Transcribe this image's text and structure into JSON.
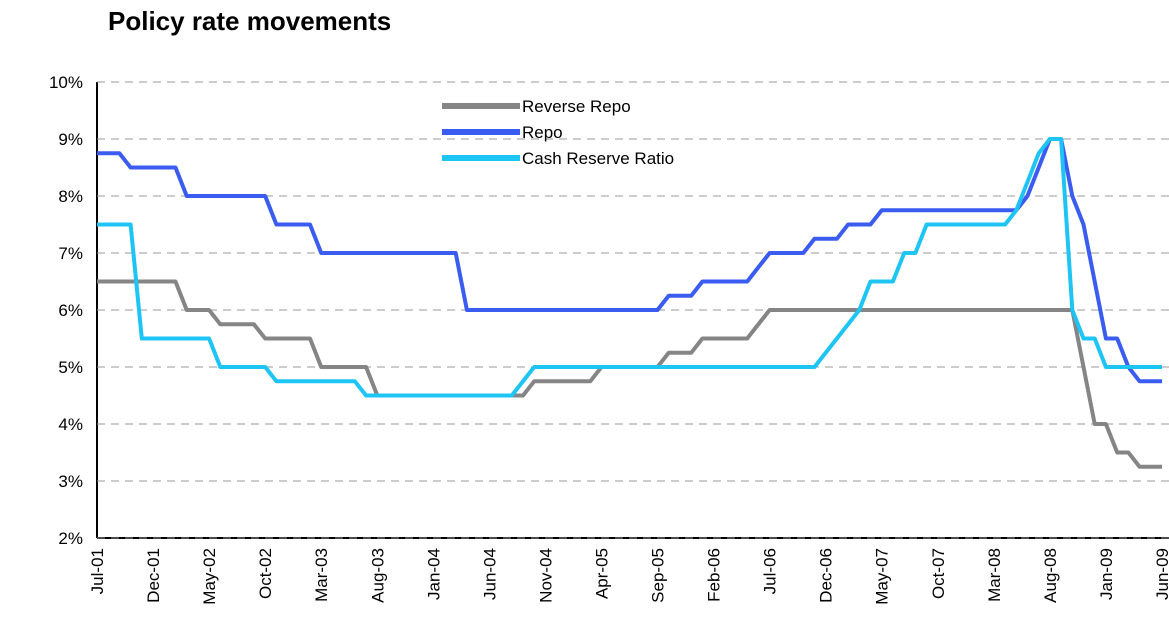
{
  "chart_data": {
    "type": "line",
    "title": "Policy rate movements",
    "categories": [
      "Jul-01",
      null,
      null,
      null,
      null,
      "Dec-01",
      null,
      null,
      null,
      null,
      "May-02",
      null,
      null,
      null,
      null,
      "Oct-02",
      null,
      null,
      null,
      null,
      "Mar-03",
      null,
      null,
      null,
      null,
      "Aug-03",
      null,
      null,
      null,
      null,
      "Jan-04",
      null,
      null,
      null,
      null,
      "Jun-04",
      null,
      null,
      null,
      null,
      "Nov-04",
      null,
      null,
      null,
      null,
      "Apr-05",
      null,
      null,
      null,
      null,
      "Sep-05",
      null,
      null,
      null,
      null,
      "Feb-06",
      null,
      null,
      null,
      null,
      "Jul-06",
      null,
      null,
      null,
      null,
      "Dec-06",
      null,
      null,
      null,
      null,
      "May-07",
      null,
      null,
      null,
      null,
      "Oct-07",
      null,
      null,
      null,
      null,
      "Mar-08",
      null,
      null,
      null,
      null,
      "Aug-08",
      null,
      null,
      null,
      null,
      "Jan-09",
      null,
      null,
      null,
      null,
      "Jun-09"
    ],
    "series": [
      {
        "name": "Reverse Repo",
        "color": "#858585",
        "values": [
          6.5,
          6.5,
          6.5,
          6.5,
          6.5,
          6.5,
          6.5,
          6.5,
          6.0,
          6.0,
          6.0,
          5.75,
          5.75,
          5.75,
          5.75,
          5.5,
          5.5,
          5.5,
          5.5,
          5.5,
          5.0,
          5.0,
          5.0,
          5.0,
          5.0,
          4.5,
          4.5,
          4.5,
          4.5,
          4.5,
          4.5,
          4.5,
          4.5,
          4.5,
          4.5,
          4.5,
          4.5,
          4.5,
          4.5,
          4.75,
          4.75,
          4.75,
          4.75,
          4.75,
          4.75,
          5.0,
          5.0,
          5.0,
          5.0,
          5.0,
          5.0,
          5.25,
          5.25,
          5.25,
          5.5,
          5.5,
          5.5,
          5.5,
          5.5,
          5.75,
          6.0,
          6.0,
          6.0,
          6.0,
          6.0,
          6.0,
          6.0,
          6.0,
          6.0,
          6.0,
          6.0,
          6.0,
          6.0,
          6.0,
          6.0,
          6.0,
          6.0,
          6.0,
          6.0,
          6.0,
          6.0,
          6.0,
          6.0,
          6.0,
          6.0,
          6.0,
          6.0,
          6.0,
          5.0,
          4.0,
          4.0,
          3.5,
          3.5,
          3.25,
          3.25,
          3.25
        ]
      },
      {
        "name": "Repo",
        "color": "#3b5cf0",
        "values": [
          8.75,
          8.75,
          8.75,
          8.5,
          8.5,
          8.5,
          8.5,
          8.5,
          8.0,
          8.0,
          8.0,
          8.0,
          8.0,
          8.0,
          8.0,
          8.0,
          7.5,
          7.5,
          7.5,
          7.5,
          7.0,
          7.0,
          7.0,
          7.0,
          7.0,
          7.0,
          7.0,
          7.0,
          7.0,
          7.0,
          7.0,
          7.0,
          7.0,
          6.0,
          6.0,
          6.0,
          6.0,
          6.0,
          6.0,
          6.0,
          6.0,
          6.0,
          6.0,
          6.0,
          6.0,
          6.0,
          6.0,
          6.0,
          6.0,
          6.0,
          6.0,
          6.25,
          6.25,
          6.25,
          6.5,
          6.5,
          6.5,
          6.5,
          6.5,
          6.75,
          7.0,
          7.0,
          7.0,
          7.0,
          7.25,
          7.25,
          7.25,
          7.5,
          7.5,
          7.5,
          7.75,
          7.75,
          7.75,
          7.75,
          7.75,
          7.75,
          7.75,
          7.75,
          7.75,
          7.75,
          7.75,
          7.75,
          7.75,
          8.0,
          8.5,
          9.0,
          9.0,
          8.0,
          7.5,
          6.5,
          5.5,
          5.5,
          5.0,
          4.75,
          4.75,
          4.75
        ]
      },
      {
        "name": "Cash Reserve Ratio",
        "color": "#1ec4f4",
        "values": [
          7.5,
          7.5,
          7.5,
          7.5,
          5.5,
          5.5,
          5.5,
          5.5,
          5.5,
          5.5,
          5.5,
          5.0,
          5.0,
          5.0,
          5.0,
          5.0,
          4.75,
          4.75,
          4.75,
          4.75,
          4.75,
          4.75,
          4.75,
          4.75,
          4.5,
          4.5,
          4.5,
          4.5,
          4.5,
          4.5,
          4.5,
          4.5,
          4.5,
          4.5,
          4.5,
          4.5,
          4.5,
          4.5,
          4.75,
          5.0,
          5.0,
          5.0,
          5.0,
          5.0,
          5.0,
          5.0,
          5.0,
          5.0,
          5.0,
          5.0,
          5.0,
          5.0,
          5.0,
          5.0,
          5.0,
          5.0,
          5.0,
          5.0,
          5.0,
          5.0,
          5.0,
          5.0,
          5.0,
          5.0,
          5.0,
          5.25,
          5.5,
          5.75,
          6.0,
          6.5,
          6.5,
          6.5,
          7.0,
          7.0,
          7.5,
          7.5,
          7.5,
          7.5,
          7.5,
          7.5,
          7.5,
          7.5,
          7.75,
          8.25,
          8.75,
          9.0,
          9.0,
          6.0,
          5.5,
          5.5,
          5.0,
          5.0,
          5.0,
          5.0,
          5.0,
          5.0
        ]
      }
    ],
    "ylim": [
      2,
      10
    ],
    "yticks": [
      {
        "value": 2,
        "label": "2%"
      },
      {
        "value": 3,
        "label": "3%"
      },
      {
        "value": 4,
        "label": "4%"
      },
      {
        "value": 5,
        "label": "5%"
      },
      {
        "value": 6,
        "label": "6%"
      },
      {
        "value": 7,
        "label": "7%"
      },
      {
        "value": 8,
        "label": "8%"
      },
      {
        "value": 9,
        "label": "9%"
      },
      {
        "value": 10,
        "label": "10%"
      }
    ],
    "grid": true
  }
}
